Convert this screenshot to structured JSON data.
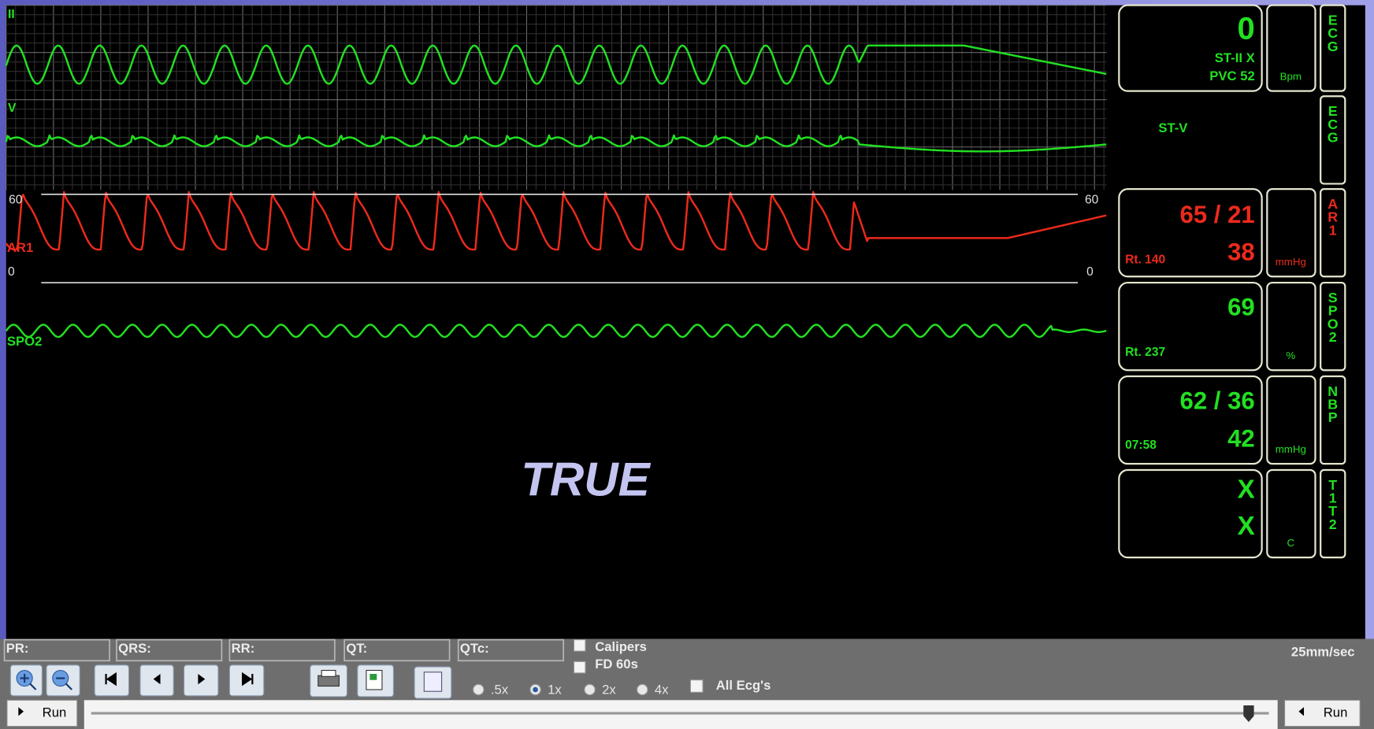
{
  "waveforms": {
    "ii": "II",
    "v": "V",
    "ar1": "AR1",
    "ar1_scale": {
      "top_left": "60",
      "top_right": "60",
      "bottom_left": "0",
      "bottom_right": "0"
    },
    "spo2": "SPO2"
  },
  "overlay": "TRUE",
  "vitals": {
    "ecg": {
      "value": "0",
      "line1": "ST-II X",
      "line2": "PVC 52",
      "unit": "Bpm",
      "tab": "ECG"
    },
    "st_v": {
      "label": "ST-V",
      "tab": "ECG"
    },
    "ar1": {
      "value": "65 / 21",
      "mean": "38",
      "rate": "Rt. 140",
      "unit": "mmHg",
      "tab": "AR1"
    },
    "spo2": {
      "value": "69",
      "rate": "Rt. 237",
      "unit": "%",
      "tab": "SPO2"
    },
    "nbp": {
      "value": "62 / 36",
      "mean": "42",
      "time": "07:58",
      "unit": "mmHg",
      "tab": "NBP"
    },
    "temp": {
      "t1": "X",
      "t2": "X",
      "unit": "C",
      "tab": "T1T2"
    }
  },
  "toolbar": {
    "fields": [
      "PR:",
      "QRS:",
      "RR:",
      "QT:",
      "QTc:"
    ],
    "calipers": "Calipers",
    "fd": "FD 60s",
    "all_ecgs": "All Ecg's",
    "speeds": [
      ".5x",
      "1x",
      "2x",
      "4x"
    ],
    "paper_speed": "25mm/sec",
    "run_left": "Run",
    "run_right": "Run"
  }
}
